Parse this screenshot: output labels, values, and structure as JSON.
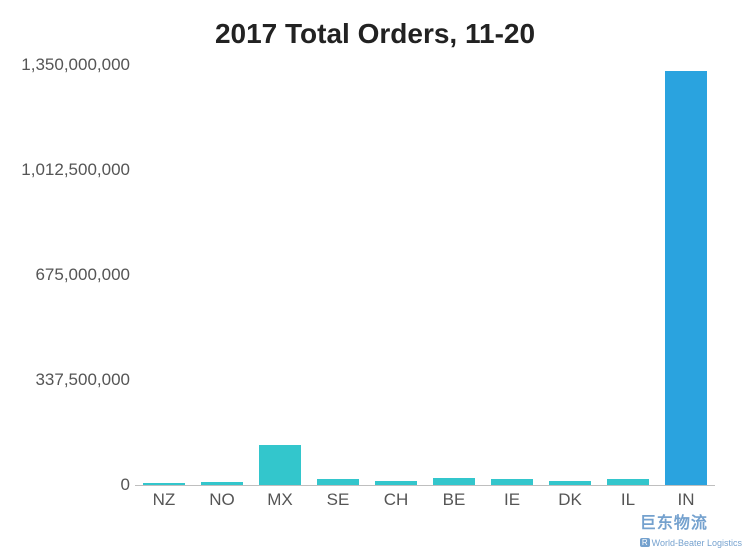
{
  "chart": {
    "type": "bar",
    "title": "2017 Total Orders, 11-20",
    "title_fontsize": 28,
    "title_fontweight": 700,
    "title_color": "#222222",
    "background_color": "#ffffff",
    "categories": [
      "NZ",
      "NO",
      "MX",
      "SE",
      "CH",
      "BE",
      "IE",
      "DK",
      "IL",
      "IN"
    ],
    "values": [
      8000000,
      9000000,
      130000000,
      18000000,
      14000000,
      22000000,
      20000000,
      12000000,
      18000000,
      1330000000
    ],
    "bar_colors": [
      "#33c6cc",
      "#33c6cc",
      "#33c6cc",
      "#33c6cc",
      "#33c6cc",
      "#33c6cc",
      "#33c6cc",
      "#33c6cc",
      "#33c6cc",
      "#2aa3df"
    ],
    "bar_width": 0.72,
    "ylim": [
      0,
      1350000000
    ],
    "ytick_values": [
      0,
      337500000,
      675000000,
      1012500000,
      1350000000
    ],
    "ytick_labels": [
      "0",
      "337,500,000",
      "675,000,000",
      "1,012,500,000",
      "1,350,000,000"
    ],
    "axis_label_fontsize": 17,
    "axis_label_color": "#555555",
    "grid_color": "#d0d0d0"
  },
  "watermark": {
    "cn_text": "巨东物流",
    "badge_text": "R",
    "en_text": "World-Beater Logistics",
    "color": "#2b6fb5"
  }
}
